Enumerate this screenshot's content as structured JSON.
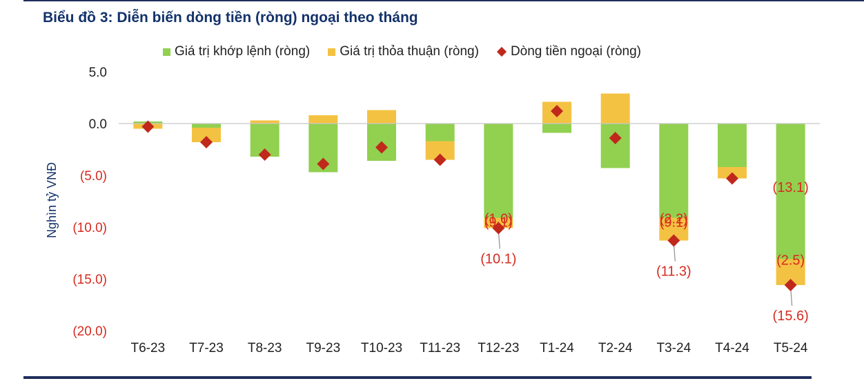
{
  "header": {
    "title": "Biểu đồ 3: Diễn biến dòng tiền (ròng) ngoại theo tháng"
  },
  "legend": [
    {
      "label": "Giá trị khớp lệnh (ròng)",
      "color": "#92d050",
      "shape": "square"
    },
    {
      "label": "Giá trị thỏa thuận (ròng)",
      "color": "#f4c242",
      "shape": "square"
    },
    {
      "label": "Dòng tiền ngoại (ròng)",
      "color": "#c0281c",
      "shape": "diamond"
    }
  ],
  "chart_data": {
    "type": "bar",
    "stacked": true,
    "ylabel": "Nghìn tỷ VNĐ",
    "ylim": [
      -20,
      5
    ],
    "yticks": [
      {
        "value": 5,
        "label": "5.0"
      },
      {
        "value": 0,
        "label": "0.0"
      },
      {
        "value": -5,
        "label": "(5.0)"
      },
      {
        "value": -10,
        "label": "(10.0)"
      },
      {
        "value": -15,
        "label": "(15.0)"
      },
      {
        "value": -20,
        "label": "(20.0)"
      }
    ],
    "categories": [
      "T6-23",
      "T7-23",
      "T8-23",
      "T9-23",
      "T10-23",
      "T11-23",
      "T12-23",
      "T1-24",
      "T2-24",
      "T3-24",
      "T4-24",
      "T5-24"
    ],
    "series": [
      {
        "name": "Giá trị khớp lệnh (ròng)",
        "kind": "bar",
        "color": "#92d050",
        "values": [
          0.2,
          -0.4,
          -3.2,
          -4.7,
          -3.6,
          -1.7,
          -9.1,
          -0.9,
          -4.3,
          -9.1,
          -4.2,
          -13.1
        ]
      },
      {
        "name": "Giá trị thỏa thuận (ròng)",
        "kind": "bar",
        "color": "#f4c242",
        "values": [
          -0.5,
          -1.4,
          0.3,
          0.8,
          1.3,
          -1.8,
          -1.0,
          2.1,
          2.9,
          -2.2,
          -1.1,
          -2.5
        ]
      },
      {
        "name": "Dòng tiền ngoại (ròng)",
        "kind": "marker",
        "color": "#c0281c",
        "values": [
          -0.3,
          -1.8,
          -3.0,
          -3.9,
          -2.3,
          -3.5,
          -10.1,
          1.2,
          -1.4,
          -11.3,
          -5.3,
          -15.6
        ]
      }
    ],
    "data_labels": [
      {
        "text": "(9.1)",
        "category": "T12-23",
        "series": "Giá trị khớp lệnh (ròng)"
      },
      {
        "text": "(1.0)",
        "category": "T12-23",
        "series": "Giá trị thỏa thuận (ròng)"
      },
      {
        "text": "(10.1)",
        "category": "T12-23",
        "series": "Dòng tiền ngoại (ròng)"
      },
      {
        "text": "(9.1)",
        "category": "T3-24",
        "series": "Giá trị khớp lệnh (ròng)"
      },
      {
        "text": "(2.2)",
        "category": "T3-24",
        "series": "Giá trị thỏa thuận (ròng)"
      },
      {
        "text": "(11.3)",
        "category": "T3-24",
        "series": "Dòng tiền ngoại (ròng)"
      },
      {
        "text": "(13.1)",
        "category": "T5-24",
        "series": "Giá trị khớp lệnh (ròng)"
      },
      {
        "text": "(2.5)",
        "category": "T5-24",
        "series": "Giá trị thỏa thuận (ròng)"
      },
      {
        "text": "(15.6)",
        "category": "T5-24",
        "series": "Dòng tiền ngoại (ròng)"
      }
    ],
    "colors": {
      "axis_text": "#1f1f1f",
      "negative_text": "#d62b1f",
      "ylabel": "#13326b",
      "zero_line": "#c8c8c8"
    }
  }
}
